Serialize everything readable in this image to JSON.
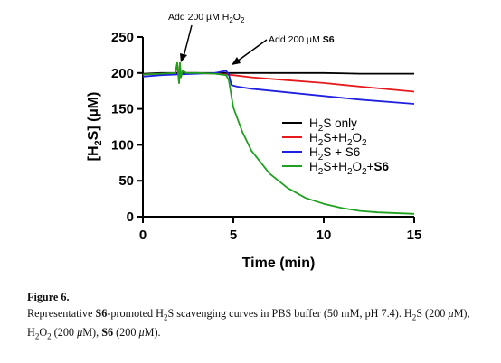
{
  "chart_data": {
    "type": "line",
    "xlabel": "Time (min)",
    "ylabel": "[H2S] (µM)",
    "xlim": [
      0,
      15
    ],
    "ylim": [
      0,
      250
    ],
    "xticks": [
      "0",
      "5",
      "10",
      "15"
    ],
    "yticks": [
      "0",
      "50",
      "100",
      "150",
      "200",
      "250"
    ],
    "legend_position": "center-right",
    "annotations": [
      {
        "text": "Add 200 µM H2O2",
        "x": 2.0,
        "y": 210
      },
      {
        "text": "Add 200 µM S6",
        "x": 4.8,
        "y": 205
      }
    ],
    "series": [
      {
        "name": "H2S only",
        "color": "#000000",
        "x": [
          0,
          1,
          2,
          3,
          4,
          5,
          6,
          8,
          10,
          12,
          15
        ],
        "y": [
          199,
          200,
          200,
          200,
          200,
          200,
          200,
          200,
          200,
          199,
          199
        ]
      },
      {
        "name": "H2S+H2O2",
        "color": "#e8191c",
        "x": [
          0,
          1,
          1.8,
          1.9,
          2.0,
          2.05,
          2.1,
          2.2,
          2.4,
          3,
          4,
          5,
          6,
          8,
          10,
          12,
          15
        ],
        "y": [
          198,
          199,
          200,
          214,
          186,
          214,
          194,
          203,
          200,
          200,
          199,
          197,
          194,
          190,
          186,
          181,
          174
        ]
      },
      {
        "name": "H2S + S6",
        "color": "#2020e0",
        "x": [
          0,
          1,
          2,
          3,
          4,
          4.6,
          4.75,
          4.9,
          5.2,
          6,
          8,
          10,
          12,
          15
        ],
        "y": [
          195,
          197,
          198,
          199,
          200,
          203,
          198,
          183,
          181,
          178,
          173,
          168,
          163,
          157
        ]
      },
      {
        "name": "H2S+H2O2+S6",
        "color": "#20a020",
        "x": [
          0,
          1,
          1.8,
          1.9,
          2.0,
          2.05,
          2.1,
          2.2,
          2.4,
          3,
          4,
          4.6,
          4.75,
          5.0,
          5.5,
          6,
          7,
          8,
          9,
          10,
          11,
          12,
          13,
          15
        ],
        "y": [
          198,
          199,
          200,
          214,
          186,
          214,
          194,
          203,
          200,
          200,
          199,
          197,
          190,
          152,
          118,
          92,
          60,
          40,
          26,
          18,
          12,
          8,
          6,
          4
        ]
      }
    ]
  },
  "labels": {
    "ylabel_main": "[H",
    "ylabel_sub": "2",
    "ylabel_rest": "S] (µM)",
    "xlabel": "Time (min)",
    "annot_h2o2_pre": "Add 200 µM H",
    "annot_h2o2_sub": "2",
    "annot_h2o2_mid": "O",
    "annot_h2o2_sub2": "2",
    "annot_s6_pre": "Add 200 µM ",
    "annot_s6_bold": "S6"
  },
  "legend": [
    {
      "parts": [
        [
          "H",
          false,
          false
        ],
        [
          "2",
          true,
          false
        ],
        [
          "S only",
          false,
          false
        ]
      ]
    },
    {
      "parts": [
        [
          "H",
          false,
          false
        ],
        [
          "2",
          true,
          false
        ],
        [
          "S+H",
          false,
          false
        ],
        [
          "2",
          true,
          false
        ],
        [
          "O",
          false,
          false
        ],
        [
          "2",
          true,
          false
        ]
      ]
    },
    {
      "parts": [
        [
          "H",
          false,
          false
        ],
        [
          "2",
          true,
          false
        ],
        [
          "S + S6",
          false,
          false
        ]
      ]
    },
    {
      "parts": [
        [
          "H",
          false,
          false
        ],
        [
          "2",
          true,
          false
        ],
        [
          "S+H",
          false,
          false
        ],
        [
          "2",
          true,
          false
        ],
        [
          "O",
          false,
          false
        ],
        [
          "2",
          true,
          false
        ],
        [
          "+",
          false,
          false
        ],
        [
          "S6",
          false,
          true
        ]
      ]
    }
  ],
  "caption": {
    "figure_label": "Figure 6.",
    "parts": [
      [
        "Representative ",
        "n"
      ],
      [
        "S6",
        "b"
      ],
      [
        "-promoted H",
        "n"
      ],
      [
        "2",
        "sub"
      ],
      [
        "S scavenging curves in PBS buffer (50 mM, pH 7.4). H",
        "n"
      ],
      [
        "2",
        "sub"
      ],
      [
        "S (200 ",
        "n"
      ],
      [
        "μ",
        "i"
      ],
      [
        "M), H",
        "n"
      ],
      [
        "2",
        "sub"
      ],
      [
        "O",
        "n"
      ],
      [
        "2",
        "sub"
      ],
      [
        " (200 ",
        "n"
      ],
      [
        "μ",
        "i"
      ],
      [
        "M), ",
        "n"
      ],
      [
        "S6",
        "b"
      ],
      [
        " (200 ",
        "n"
      ],
      [
        "μ",
        "i"
      ],
      [
        "M).",
        "n"
      ]
    ]
  }
}
